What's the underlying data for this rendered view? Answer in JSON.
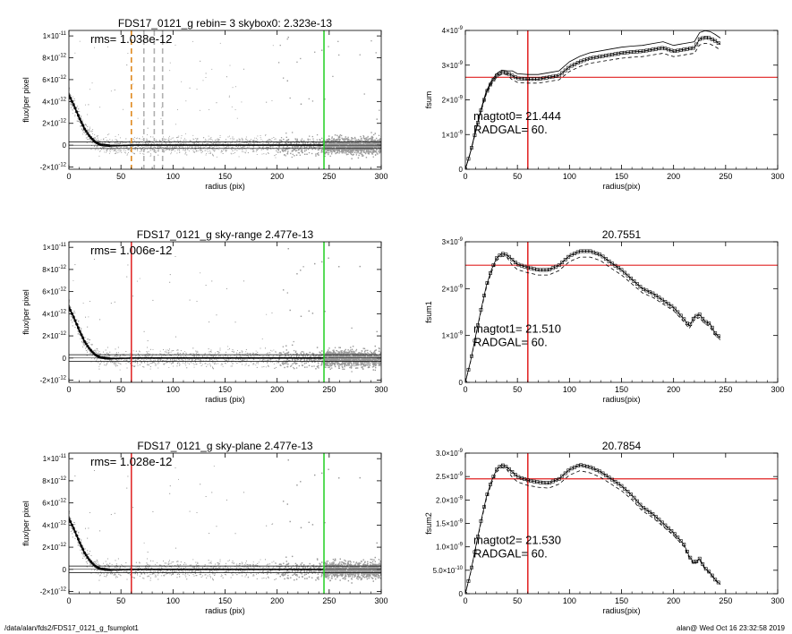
{
  "footer": {
    "path": "/data/alan/fds2/FDS17_0121_g_fsumplot1",
    "stamp": "alan@  Wed Oct 16 23:32:58 2019"
  },
  "colors": {
    "red": "#e02020",
    "green": "#20d020",
    "orange": "#e08a20",
    "scatter": "#9a9a9a",
    "black": "#000000"
  },
  "chart_data": [
    {
      "type": "scatter",
      "title": "FDS17_0121_g rebin= 3    skybox0:  2.323e-13",
      "xlabel": "radius (pix)",
      "ylabel": "flux/per pixel",
      "xlim": [
        0,
        300
      ],
      "ylim": [
        -2.2e-12,
        1.05e-11
      ],
      "xticks": [
        "0",
        "50",
        "100",
        "150",
        "200",
        "250",
        "300"
      ],
      "yticks": [
        {
          "v": 1e-11,
          "base": "1×10",
          "exp": "-11"
        },
        {
          "v": 8e-12,
          "base": "8×10",
          "exp": "-12"
        },
        {
          "v": 6e-12,
          "base": "6×10",
          "exp": "-12"
        },
        {
          "v": 4e-12,
          "base": "4×10",
          "exp": "-12"
        },
        {
          "v": 2e-12,
          "base": "2×10",
          "exp": "-12"
        },
        {
          "v": 0,
          "base": "0",
          "exp": ""
        },
        {
          "v": -2e-12,
          "base": "-2×10",
          "exp": "-12"
        }
      ],
      "annotation": "rms= 1.038e-12",
      "vlines": [
        {
          "x": 60,
          "color": "orange",
          "dash": true
        },
        {
          "x": 72,
          "color": "gray",
          "dash": true
        },
        {
          "x": 82,
          "color": "gray",
          "dash": true
        },
        {
          "x": 90,
          "color": "gray",
          "dash": true
        },
        {
          "x": 245,
          "color": "green",
          "dash": false
        }
      ],
      "hlines": [
        3e-13,
        -3e-13
      ],
      "series": [
        {
          "points": [
            [
              0,
              4.6e-12
            ],
            [
              5,
              3.6e-12
            ],
            [
              10,
              2.5e-12
            ],
            [
              15,
              1.5e-12
            ],
            [
              20,
              8e-13
            ],
            [
              25,
              3e-13
            ],
            [
              30,
              5e-14
            ],
            [
              40,
              -5e-14
            ],
            [
              60,
              0.0
            ],
            [
              100,
              0.0
            ],
            [
              150,
              0.0
            ],
            [
              200,
              0.0
            ],
            [
              245,
              0.0
            ]
          ]
        }
      ]
    },
    {
      "type": "line",
      "title": "",
      "xlabel": "radius(pix)",
      "ylabel": "fsum",
      "xlim": [
        0,
        300
      ],
      "ylim": [
        0,
        4e-09
      ],
      "xticks": [
        "0",
        "50",
        "100",
        "150",
        "200",
        "250",
        "300"
      ],
      "yticks": [
        {
          "v": 4e-09,
          "base": "4×10",
          "exp": "-9"
        },
        {
          "v": 3e-09,
          "base": "3×10",
          "exp": "-9"
        },
        {
          "v": 2e-09,
          "base": "2×10",
          "exp": "-9"
        },
        {
          "v": 1e-09,
          "base": "1×10",
          "exp": "-9"
        },
        {
          "v": 0,
          "base": "0",
          "exp": ""
        }
      ],
      "annotations": [
        "magtot0=  21.444",
        "RADGAL=     60."
      ],
      "vline": 60,
      "hline": 2.65e-09,
      "series": [
        {
          "points": [
            [
              0,
              0.0
            ],
            [
              5,
              5e-10
            ],
            [
              10,
              1.1e-09
            ],
            [
              15,
              1.7e-09
            ],
            [
              20,
              2.2e-09
            ],
            [
              25,
              2.5e-09
            ],
            [
              30,
              2.7e-09
            ],
            [
              35,
              2.8e-09
            ],
            [
              40,
              2.78e-09
            ],
            [
              45,
              2.7e-09
            ],
            [
              50,
              2.62e-09
            ],
            [
              60,
              2.6e-09
            ],
            [
              70,
              2.6e-09
            ],
            [
              80,
              2.65e-09
            ],
            [
              90,
              2.7e-09
            ],
            [
              100,
              2.95e-09
            ],
            [
              110,
              3.1e-09
            ],
            [
              120,
              3.2e-09
            ],
            [
              130,
              3.25e-09
            ],
            [
              140,
              3.3e-09
            ],
            [
              150,
              3.35e-09
            ],
            [
              160,
              3.38e-09
            ],
            [
              170,
              3.4e-09
            ],
            [
              180,
              3.45e-09
            ],
            [
              190,
              3.5e-09
            ],
            [
              200,
              3.4e-09
            ],
            [
              210,
              3.45e-09
            ],
            [
              220,
              3.5e-09
            ],
            [
              225,
              3.75e-09
            ],
            [
              230,
              3.8e-09
            ],
            [
              235,
              3.78e-09
            ],
            [
              240,
              3.7e-09
            ],
            [
              245,
              3.6e-09
            ]
          ]
        }
      ]
    },
    {
      "type": "scatter",
      "title": "FDS17_0121_g sky-range  2.477e-13",
      "xlabel": "radius (pix)",
      "ylabel": "flux/per pixel",
      "xlim": [
        0,
        300
      ],
      "ylim": [
        -2.2e-12,
        1.05e-11
      ],
      "xticks": [
        "0",
        "50",
        "100",
        "150",
        "200",
        "250",
        "300"
      ],
      "yticks": [
        {
          "v": 1e-11,
          "base": "1×10",
          "exp": "-11"
        },
        {
          "v": 8e-12,
          "base": "8×10",
          "exp": "-12"
        },
        {
          "v": 6e-12,
          "base": "6×10",
          "exp": "-12"
        },
        {
          "v": 4e-12,
          "base": "4×10",
          "exp": "-12"
        },
        {
          "v": 2e-12,
          "base": "2×10",
          "exp": "-12"
        },
        {
          "v": 0,
          "base": "0",
          "exp": ""
        },
        {
          "v": -2e-12,
          "base": "-2×10",
          "exp": "-12"
        }
      ],
      "annotation": "rms= 1.006e-12",
      "vlines": [
        {
          "x": 60,
          "color": "red",
          "dash": false
        },
        {
          "x": 245,
          "color": "green",
          "dash": false
        }
      ],
      "hlines": [
        3e-13,
        -3e-13
      ],
      "series": [
        {
          "points": [
            [
              0,
              4.6e-12
            ],
            [
              5,
              3.6e-12
            ],
            [
              10,
              2.5e-12
            ],
            [
              15,
              1.5e-12
            ],
            [
              20,
              8e-13
            ],
            [
              25,
              3e-13
            ],
            [
              30,
              5e-14
            ],
            [
              40,
              -5e-14
            ],
            [
              60,
              0.0
            ],
            [
              100,
              0.0
            ],
            [
              150,
              0.0
            ],
            [
              200,
              0.0
            ],
            [
              245,
              0.0
            ]
          ]
        }
      ]
    },
    {
      "type": "line",
      "title": "20.7551",
      "xlabel": "radius(pix)",
      "ylabel": "fsum1",
      "xlim": [
        0,
        300
      ],
      "ylim": [
        0,
        3e-09
      ],
      "xticks": [
        "0",
        "50",
        "100",
        "150",
        "200",
        "250",
        "300"
      ],
      "yticks": [
        {
          "v": 3e-09,
          "base": "3×10",
          "exp": "-9"
        },
        {
          "v": 2e-09,
          "base": "2×10",
          "exp": "-9"
        },
        {
          "v": 1e-09,
          "base": "1×10",
          "exp": "-9"
        },
        {
          "v": 0,
          "base": "0",
          "exp": ""
        }
      ],
      "annotations": [
        "magtot1=  21.510",
        "RADGAL=     60."
      ],
      "vline": 60,
      "hline": 2.5e-09,
      "series": [
        {
          "points": [
            [
              0,
              0.0
            ],
            [
              5,
              4.5e-10
            ],
            [
              10,
              1e-09
            ],
            [
              15,
              1.55e-09
            ],
            [
              20,
              2.05e-09
            ],
            [
              25,
              2.4e-09
            ],
            [
              30,
              2.65e-09
            ],
            [
              35,
              2.75e-09
            ],
            [
              40,
              2.72e-09
            ],
            [
              45,
              2.62e-09
            ],
            [
              50,
              2.52e-09
            ],
            [
              60,
              2.45e-09
            ],
            [
              70,
              2.4e-09
            ],
            [
              80,
              2.4e-09
            ],
            [
              90,
              2.5e-09
            ],
            [
              100,
              2.7e-09
            ],
            [
              110,
              2.8e-09
            ],
            [
              120,
              2.8e-09
            ],
            [
              130,
              2.72e-09
            ],
            [
              140,
              2.55e-09
            ],
            [
              150,
              2.4e-09
            ],
            [
              160,
              2.2e-09
            ],
            [
              170,
              2e-09
            ],
            [
              180,
              1.9e-09
            ],
            [
              190,
              1.75e-09
            ],
            [
              200,
              1.6e-09
            ],
            [
              210,
              1.35e-09
            ],
            [
              215,
              1.2e-09
            ],
            [
              220,
              1.4e-09
            ],
            [
              225,
              1.45e-09
            ],
            [
              230,
              1.3e-09
            ],
            [
              235,
              1.25e-09
            ],
            [
              240,
              1.05e-09
            ],
            [
              245,
              9.5e-10
            ]
          ]
        }
      ]
    },
    {
      "type": "scatter",
      "title": "FDS17_0121_g sky-plane  2.477e-13",
      "xlabel": "radius (pix)",
      "ylabel": "flux/per pixel",
      "xlim": [
        0,
        300
      ],
      "ylim": [
        -2.2e-12,
        1.05e-11
      ],
      "xticks": [
        "0",
        "50",
        "100",
        "150",
        "200",
        "250",
        "300"
      ],
      "yticks": [
        {
          "v": 1e-11,
          "base": "1×10",
          "exp": "-11"
        },
        {
          "v": 8e-12,
          "base": "8×10",
          "exp": "-12"
        },
        {
          "v": 6e-12,
          "base": "6×10",
          "exp": "-12"
        },
        {
          "v": 4e-12,
          "base": "4×10",
          "exp": "-12"
        },
        {
          "v": 2e-12,
          "base": "2×10",
          "exp": "-12"
        },
        {
          "v": 0,
          "base": "0",
          "exp": ""
        },
        {
          "v": -2e-12,
          "base": "-2×10",
          "exp": "-12"
        }
      ],
      "annotation": "rms= 1.028e-12",
      "vlines": [
        {
          "x": 60,
          "color": "red",
          "dash": false
        },
        {
          "x": 245,
          "color": "green",
          "dash": false
        }
      ],
      "hlines": [
        3e-13,
        -3e-13
      ],
      "series": [
        {
          "points": [
            [
              0,
              4.6e-12
            ],
            [
              5,
              3.6e-12
            ],
            [
              10,
              2.5e-12
            ],
            [
              15,
              1.5e-12
            ],
            [
              20,
              8e-13
            ],
            [
              25,
              3e-13
            ],
            [
              30,
              5e-14
            ],
            [
              40,
              -5e-14
            ],
            [
              60,
              0.0
            ],
            [
              100,
              0.0
            ],
            [
              150,
              0.0
            ],
            [
              200,
              0.0
            ],
            [
              245,
              0.0
            ]
          ]
        }
      ]
    },
    {
      "type": "line",
      "title": "20.7854",
      "xlabel": "radius(pix)",
      "ylabel": "fsum2",
      "xlim": [
        0,
        300
      ],
      "ylim": [
        0,
        3e-09
      ],
      "xticks": [
        "0",
        "50",
        "100",
        "150",
        "200",
        "250",
        "300"
      ],
      "yticks": [
        {
          "v": 3e-09,
          "base": "3.0×10",
          "exp": "-9"
        },
        {
          "v": 2.5e-09,
          "base": "2.5×10",
          "exp": "-9"
        },
        {
          "v": 2e-09,
          "base": "2.0×10",
          "exp": "-9"
        },
        {
          "v": 1.5e-09,
          "base": "1.5×10",
          "exp": "-9"
        },
        {
          "v": 1e-09,
          "base": "1.0×10",
          "exp": "-9"
        },
        {
          "v": 5e-10,
          "base": "5.0×10",
          "exp": "-10"
        },
        {
          "v": 0,
          "base": "0",
          "exp": ""
        }
      ],
      "annotations": [
        "magtot2=  21.530",
        "RADGAL=     60."
      ],
      "vline": 60,
      "hline": 2.45e-09,
      "series": [
        {
          "points": [
            [
              0,
              0.0
            ],
            [
              5,
              4.5e-10
            ],
            [
              10,
              1e-09
            ],
            [
              15,
              1.55e-09
            ],
            [
              20,
              2.05e-09
            ],
            [
              25,
              2.4e-09
            ],
            [
              30,
              2.65e-09
            ],
            [
              35,
              2.75e-09
            ],
            [
              40,
              2.7e-09
            ],
            [
              45,
              2.6e-09
            ],
            [
              50,
              2.5e-09
            ],
            [
              60,
              2.42e-09
            ],
            [
              70,
              2.38e-09
            ],
            [
              80,
              2.36e-09
            ],
            [
              90,
              2.45e-09
            ],
            [
              100,
              2.65e-09
            ],
            [
              110,
              2.75e-09
            ],
            [
              120,
              2.7e-09
            ],
            [
              130,
              2.6e-09
            ],
            [
              140,
              2.45e-09
            ],
            [
              150,
              2.3e-09
            ],
            [
              160,
              2.1e-09
            ],
            [
              170,
              1.85e-09
            ],
            [
              180,
              1.7e-09
            ],
            [
              190,
              1.5e-09
            ],
            [
              200,
              1.3e-09
            ],
            [
              210,
              1.05e-09
            ],
            [
              215,
              8e-10
            ],
            [
              220,
              6.5e-10
            ],
            [
              225,
              7.5e-10
            ],
            [
              230,
              5.5e-10
            ],
            [
              235,
              4.5e-10
            ],
            [
              240,
              3e-10
            ],
            [
              245,
              2e-10
            ]
          ]
        }
      ]
    }
  ]
}
